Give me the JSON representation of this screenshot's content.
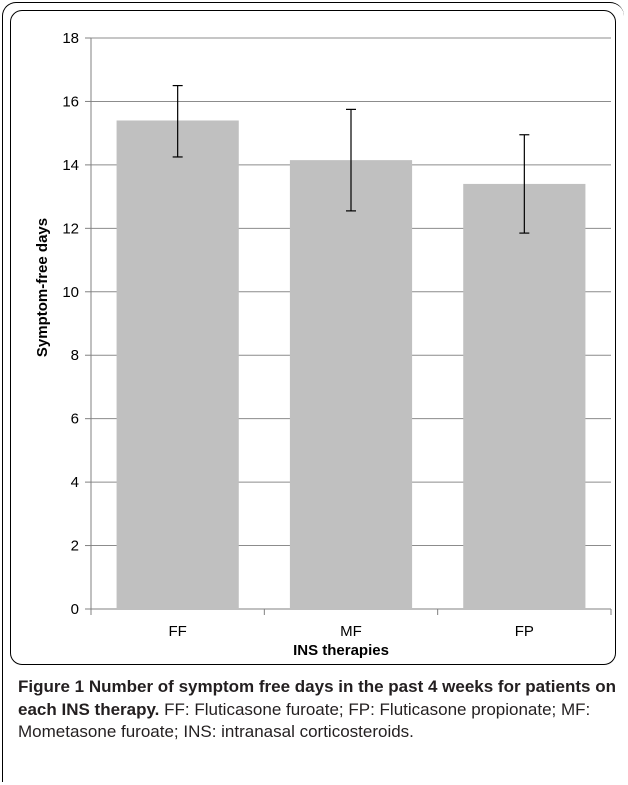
{
  "chart_data": {
    "type": "bar",
    "categories": [
      "FF",
      "MF",
      "FP"
    ],
    "values": [
      15.4,
      14.15,
      13.4
    ],
    "error": [
      {
        "low": 14.25,
        "high": 16.5
      },
      {
        "low": 12.55,
        "high": 15.75
      },
      {
        "low": 11.85,
        "high": 14.95
      }
    ],
    "xlabel": "INS therapies",
    "ylabel": "Symptom-free days",
    "ylim": [
      0,
      18
    ],
    "yticks": [
      0,
      2,
      4,
      6,
      8,
      10,
      12,
      14,
      16,
      18
    ],
    "grid": true,
    "legend": "none",
    "bar_color": "#c0c0c0",
    "grid_color": "#8c8c8c"
  },
  "caption": {
    "title": "Figure 1 Number of symptom free days in the past 4 weeks for patients on each INS therapy.",
    "text": " FF: Fluticasone furoate; FP: Fluticasone propionate; MF: Mometasone furoate; INS: intranasal corticosteroids."
  }
}
